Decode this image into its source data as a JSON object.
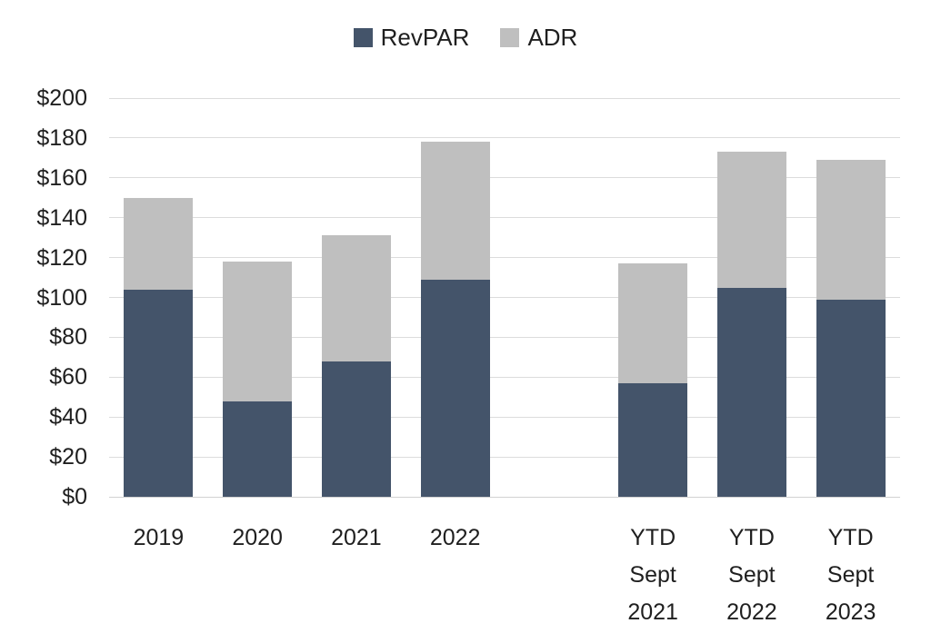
{
  "colors": {
    "background": "#ffffff",
    "revpar": "#44546A",
    "adr": "#BFBFBF",
    "gridline": "#DCDCDC",
    "axis_text": "#1F1F1F"
  },
  "legend": {
    "items": [
      {
        "label": "RevPAR",
        "color": "#44546A"
      },
      {
        "label": "ADR",
        "color": "#BFBFBF"
      }
    ]
  },
  "chart_data": {
    "type": "bar",
    "stacked": true,
    "categories": [
      "2019",
      "2020",
      "2021",
      "2022",
      null,
      "YTD Sept 2021",
      "YTD Sept 2022",
      "YTD Sept 2023"
    ],
    "category_lines": [
      [
        "2019"
      ],
      [
        "2020"
      ],
      [
        "2021"
      ],
      [
        "2022"
      ],
      null,
      [
        "YTD",
        "Sept",
        "2021"
      ],
      [
        "YTD",
        "Sept",
        "2022"
      ],
      [
        "YTD",
        "Sept",
        "2023"
      ]
    ],
    "series": [
      {
        "name": "RevPAR",
        "color": "#44546A",
        "values": [
          104,
          48,
          68,
          109,
          null,
          57,
          105,
          99
        ]
      },
      {
        "name": "ADR",
        "color": "#BFBFBF",
        "values": [
          150,
          118,
          131,
          178,
          null,
          117,
          173,
          169
        ]
      }
    ],
    "stack_note": "Gray ADR segment is drawn from the RevPAR value up to the ADR value (bar total height = ADR).",
    "ylim": [
      0,
      200
    ],
    "ytick_step": 20,
    "ytick_labels": [
      "$0",
      "$20",
      "$40",
      "$60",
      "$80",
      "$100",
      "$120",
      "$140",
      "$160",
      "$180",
      "$200"
    ],
    "grid": true,
    "legend_position": "top-center",
    "xlabel": "",
    "ylabel": "",
    "title": ""
  }
}
